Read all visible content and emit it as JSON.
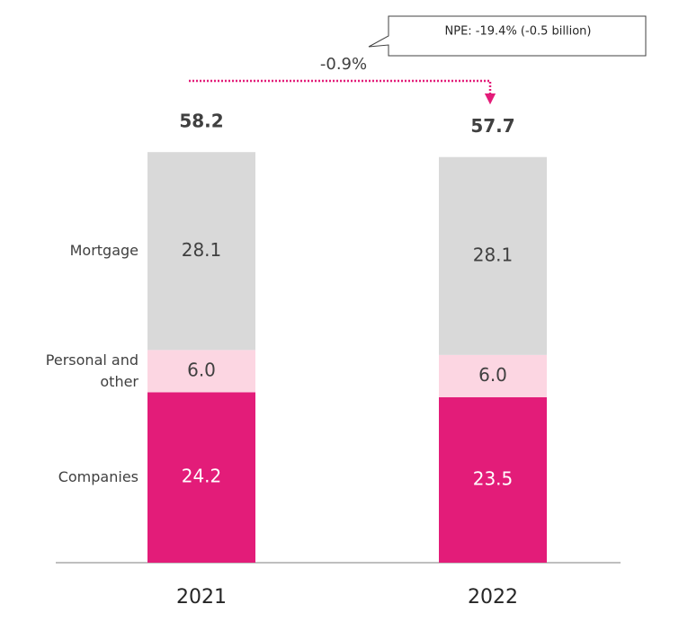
{
  "chart_data": {
    "type": "stacked_bar",
    "categories": [
      "2021",
      "2022"
    ],
    "series": [
      {
        "name": "Companies",
        "color": "#e31c79",
        "values": [
          24.2,
          23.5
        ]
      },
      {
        "name": "Personal and other",
        "color": "#fcd6e2",
        "values": [
          6.0,
          6.0
        ],
        "value_labels": [
          "6.0",
          "6.0"
        ]
      },
      {
        "name": "Mortgage",
        "color": "#d9d9d9",
        "values": [
          28.1,
          28.1
        ]
      }
    ],
    "totals": [
      58.2,
      57.7
    ],
    "annotations": {
      "change": "-0.9%",
      "callout": "NPE: -19.4% (-0.5 billion)"
    }
  }
}
